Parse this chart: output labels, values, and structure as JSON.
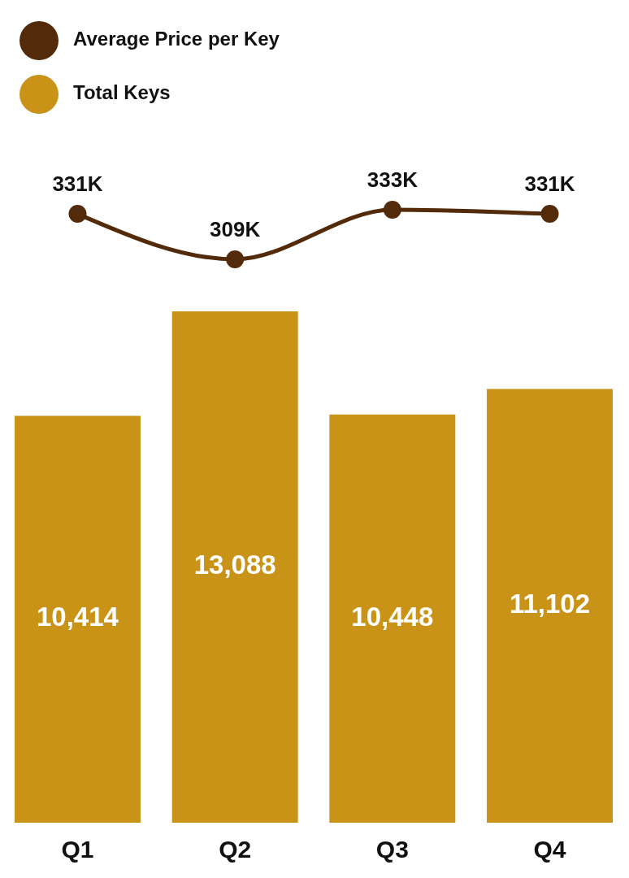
{
  "chart_data": [
    {
      "type": "line",
      "categories": [
        null,
        null,
        null,
        null
      ],
      "legend": "top left",
      "marker": "circle",
      "series": [
        {
          "name": "Average Price per Key",
          "color": "#532b0b",
          "values": [
            331000,
            309000,
            333000,
            331000
          ],
          "value_labels": [
            "331K",
            "309K",
            "333K",
            "331K"
          ]
        }
      ]
    },
    {
      "type": "bar",
      "categories": [
        "Q1",
        "Q2",
        "Q3",
        "Q4"
      ],
      "legend": "top left",
      "series": [
        {
          "name": "Total Keys",
          "color": "#c89317",
          "values": [
            10414,
            13088,
            10448,
            11102
          ],
          "value_labels": [
            "10,414",
            "13,088",
            "10,448",
            "11,102"
          ]
        }
      ]
    }
  ]
}
